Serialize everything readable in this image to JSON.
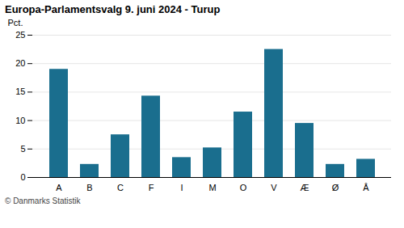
{
  "chart_data": {
    "type": "bar",
    "title": "Europa-Parlamentsvalg 9. juni 2024 - Turup",
    "ylabel": "Pct.",
    "caption": "© Danmarks Statistik",
    "categories": [
      "A",
      "B",
      "C",
      "F",
      "I",
      "M",
      "O",
      "V",
      "Æ",
      "Ø",
      "Å"
    ],
    "values": [
      19.0,
      2.3,
      7.5,
      14.3,
      3.5,
      5.2,
      11.5,
      22.5,
      9.5,
      2.3,
      3.2
    ],
    "color": "#1a6e8e",
    "ylim": [
      0,
      25
    ],
    "yticks": [
      0,
      5,
      10,
      15,
      20,
      25
    ],
    "grid": true
  }
}
